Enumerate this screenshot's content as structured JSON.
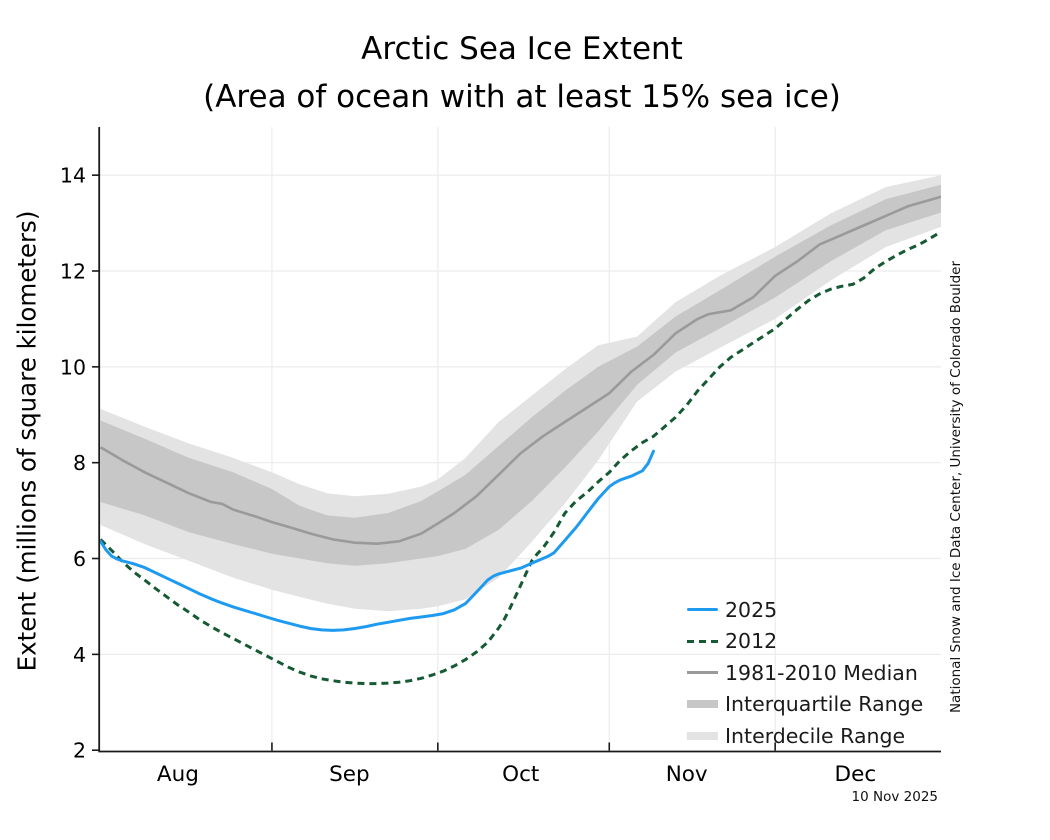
{
  "chart_data": {
    "type": "line",
    "title": "Arctic Sea Ice Extent",
    "subtitle": "(Area of ocean with at least 15% sea ice)",
    "ylabel": "Extent (millions of square kilometers)",
    "date_label": "10 Nov 2025",
    "credit": "National Snow and Ice Data Center, University of Colorado Boulder",
    "ylim": [
      2,
      15
    ],
    "y_ticks": [
      2,
      4,
      6,
      8,
      10,
      12,
      14
    ],
    "grid": true,
    "x_start_date": "Aug 1",
    "x_end_date": "Dec 31",
    "month_labels": [
      {
        "label": "Aug",
        "mid_day": 14
      },
      {
        "label": "Sep",
        "mid_day": 45
      },
      {
        "label": "Oct",
        "mid_day": 76
      },
      {
        "label": "Nov",
        "mid_day": 106
      },
      {
        "label": "Dec",
        "mid_day": 136.5
      }
    ],
    "month_tick_days": [
      31,
      61,
      92,
      122
    ],
    "legend": [
      {
        "label": "2025",
        "swatch": "line-solid",
        "color": "#1e9bf0"
      },
      {
        "label": "2012",
        "swatch": "line-dashed",
        "color": "#155a33"
      },
      {
        "label": "1981-2010 Median",
        "swatch": "line-solid",
        "color": "#9a9a9a"
      },
      {
        "label": "Interquartile Range",
        "swatch": "band",
        "color": "#c7c7c7"
      },
      {
        "label": "Interdecile Range",
        "swatch": "band",
        "color": "#e3e3e3"
      }
    ],
    "colors": {
      "line_2025": "#1e9bf0",
      "line_2012": "#155a33",
      "line_median": "#9a9a9a",
      "band_interquartile": "#c7c7c7",
      "band_interdecile": "#e3e3e3",
      "gridline": "#ececec",
      "axis": "#1a1a1a",
      "background": "#ffffff"
    },
    "series": [
      {
        "name": "2025",
        "units": "days_from_Aug1_and_Mkm2",
        "points": [
          [
            0,
            6.36
          ],
          [
            1,
            6.18
          ],
          [
            2,
            6.05
          ],
          [
            3,
            5.99
          ],
          [
            4,
            5.95
          ],
          [
            6,
            5.89
          ],
          [
            8,
            5.81
          ],
          [
            10,
            5.7
          ],
          [
            12,
            5.59
          ],
          [
            14,
            5.48
          ],
          [
            16,
            5.37
          ],
          [
            18,
            5.26
          ],
          [
            20,
            5.16
          ],
          [
            22,
            5.07
          ],
          [
            24,
            4.99
          ],
          [
            26,
            4.92
          ],
          [
            28,
            4.85
          ],
          [
            30,
            4.78
          ],
          [
            32,
            4.71
          ],
          [
            34,
            4.65
          ],
          [
            36,
            4.59
          ],
          [
            38,
            4.54
          ],
          [
            40,
            4.51
          ],
          [
            42,
            4.5
          ],
          [
            44,
            4.51
          ],
          [
            46,
            4.54
          ],
          [
            48,
            4.58
          ],
          [
            50,
            4.63
          ],
          [
            52,
            4.67
          ],
          [
            54,
            4.71
          ],
          [
            56,
            4.75
          ],
          [
            58,
            4.78
          ],
          [
            60,
            4.81
          ],
          [
            62,
            4.85
          ],
          [
            64,
            4.93
          ],
          [
            66,
            5.06
          ],
          [
            68,
            5.3
          ],
          [
            70,
            5.55
          ],
          [
            71,
            5.63
          ],
          [
            72,
            5.68
          ],
          [
            74,
            5.74
          ],
          [
            76,
            5.8
          ],
          [
            78,
            5.9
          ],
          [
            80,
            6.0
          ],
          [
            81,
            6.05
          ],
          [
            82,
            6.12
          ],
          [
            84,
            6.38
          ],
          [
            86,
            6.65
          ],
          [
            88,
            6.95
          ],
          [
            90,
            7.25
          ],
          [
            92,
            7.5
          ],
          [
            93,
            7.58
          ],
          [
            94,
            7.64
          ],
          [
            96,
            7.72
          ],
          [
            98,
            7.83
          ],
          [
            99,
            7.98
          ],
          [
            100,
            8.24
          ]
        ]
      },
      {
        "name": "2012",
        "units": "days_from_Aug1_and_Mkm2",
        "points": [
          [
            0,
            6.4
          ],
          [
            2,
            6.17
          ],
          [
            4,
            5.93
          ],
          [
            6,
            5.72
          ],
          [
            8,
            5.55
          ],
          [
            10,
            5.37
          ],
          [
            12,
            5.2
          ],
          [
            14,
            5.03
          ],
          [
            16,
            4.88
          ],
          [
            18,
            4.72
          ],
          [
            20,
            4.58
          ],
          [
            22,
            4.45
          ],
          [
            24,
            4.33
          ],
          [
            26,
            4.21
          ],
          [
            28,
            4.09
          ],
          [
            30,
            3.97
          ],
          [
            32,
            3.85
          ],
          [
            34,
            3.73
          ],
          [
            36,
            3.63
          ],
          [
            38,
            3.55
          ],
          [
            40,
            3.49
          ],
          [
            42,
            3.45
          ],
          [
            44,
            3.42
          ],
          [
            46,
            3.4
          ],
          [
            48,
            3.39
          ],
          [
            50,
            3.39
          ],
          [
            52,
            3.4
          ],
          [
            54,
            3.42
          ],
          [
            56,
            3.45
          ],
          [
            58,
            3.5
          ],
          [
            60,
            3.57
          ],
          [
            62,
            3.65
          ],
          [
            64,
            3.76
          ],
          [
            66,
            3.89
          ],
          [
            68,
            4.05
          ],
          [
            70,
            4.25
          ],
          [
            72,
            4.55
          ],
          [
            73,
            4.73
          ],
          [
            74,
            4.95
          ],
          [
            75,
            5.2
          ],
          [
            76,
            5.45
          ],
          [
            77,
            5.7
          ],
          [
            78,
            5.95
          ],
          [
            79,
            6.1
          ],
          [
            80,
            6.22
          ],
          [
            81,
            6.38
          ],
          [
            82,
            6.55
          ],
          [
            83,
            6.75
          ],
          [
            84,
            6.95
          ],
          [
            86,
            7.2
          ],
          [
            88,
            7.38
          ],
          [
            90,
            7.6
          ],
          [
            92,
            7.8
          ],
          [
            94,
            8.05
          ],
          [
            96,
            8.25
          ],
          [
            98,
            8.42
          ],
          [
            100,
            8.55
          ],
          [
            102,
            8.75
          ],
          [
            104,
            8.95
          ],
          [
            106,
            9.2
          ],
          [
            108,
            9.5
          ],
          [
            110,
            9.75
          ],
          [
            112,
            10.0
          ],
          [
            114,
            10.2
          ],
          [
            116,
            10.35
          ],
          [
            118,
            10.5
          ],
          [
            120,
            10.65
          ],
          [
            122,
            10.8
          ],
          [
            124,
            11.0
          ],
          [
            126,
            11.2
          ],
          [
            128,
            11.38
          ],
          [
            130,
            11.52
          ],
          [
            132,
            11.62
          ],
          [
            134,
            11.68
          ],
          [
            136,
            11.72
          ],
          [
            138,
            11.85
          ],
          [
            140,
            12.05
          ],
          [
            142,
            12.2
          ],
          [
            144,
            12.33
          ],
          [
            146,
            12.45
          ],
          [
            148,
            12.55
          ],
          [
            150,
            12.68
          ],
          [
            152,
            12.82
          ]
        ]
      },
      {
        "name": "1981-2010 Median",
        "units": "days_from_Aug1_and_Mkm2",
        "points": [
          [
            0,
            8.32
          ],
          [
            4,
            8.05
          ],
          [
            8,
            7.8
          ],
          [
            12,
            7.58
          ],
          [
            16,
            7.36
          ],
          [
            20,
            7.18
          ],
          [
            22,
            7.14
          ],
          [
            24,
            7.02
          ],
          [
            28,
            6.88
          ],
          [
            31,
            6.76
          ],
          [
            34,
            6.66
          ],
          [
            38,
            6.52
          ],
          [
            42,
            6.4
          ],
          [
            46,
            6.33
          ],
          [
            50,
            6.31
          ],
          [
            54,
            6.36
          ],
          [
            58,
            6.52
          ],
          [
            61,
            6.73
          ],
          [
            64,
            6.95
          ],
          [
            68,
            7.3
          ],
          [
            72,
            7.75
          ],
          [
            76,
            8.2
          ],
          [
            80,
            8.55
          ],
          [
            84,
            8.85
          ],
          [
            88,
            9.15
          ],
          [
            92,
            9.45
          ],
          [
            96,
            9.9
          ],
          [
            100,
            10.25
          ],
          [
            104,
            10.7
          ],
          [
            108,
            11.0
          ],
          [
            110,
            11.1
          ],
          [
            114,
            11.18
          ],
          [
            118,
            11.45
          ],
          [
            122,
            11.9
          ],
          [
            126,
            12.2
          ],
          [
            130,
            12.55
          ],
          [
            134,
            12.75
          ],
          [
            138,
            12.95
          ],
          [
            142,
            13.15
          ],
          [
            146,
            13.35
          ],
          [
            149,
            13.45
          ],
          [
            152,
            13.55
          ]
        ]
      }
    ],
    "bands": [
      {
        "name": "Interdecile Range",
        "points": [
          [
            0,
            6.7,
            9.12
          ],
          [
            8,
            6.3,
            8.75
          ],
          [
            16,
            5.95,
            8.4
          ],
          [
            24,
            5.6,
            8.1
          ],
          [
            31,
            5.35,
            7.8
          ],
          [
            36,
            5.2,
            7.55
          ],
          [
            41,
            5.06,
            7.36
          ],
          [
            46,
            4.95,
            7.3
          ],
          [
            52,
            4.9,
            7.35
          ],
          [
            58,
            4.95,
            7.5
          ],
          [
            61,
            5.0,
            7.65
          ],
          [
            66,
            5.15,
            8.1
          ],
          [
            72,
            5.6,
            8.85
          ],
          [
            78,
            6.35,
            9.4
          ],
          [
            84,
            7.15,
            9.95
          ],
          [
            90,
            8.05,
            10.45
          ],
          [
            97,
            9.27,
            10.63
          ],
          [
            104,
            9.9,
            11.35
          ],
          [
            112,
            10.4,
            11.9
          ],
          [
            122,
            11.0,
            12.5
          ],
          [
            132,
            11.8,
            13.2
          ],
          [
            142,
            12.5,
            13.75
          ],
          [
            152,
            12.92,
            14.0
          ]
        ]
      },
      {
        "name": "Interquartile Range",
        "points": [
          [
            0,
            7.18,
            8.88
          ],
          [
            8,
            6.9,
            8.5
          ],
          [
            16,
            6.55,
            8.1
          ],
          [
            24,
            6.3,
            7.8
          ],
          [
            31,
            6.1,
            7.45
          ],
          [
            36,
            6.0,
            7.1
          ],
          [
            41,
            5.9,
            6.9
          ],
          [
            46,
            5.85,
            6.85
          ],
          [
            52,
            5.9,
            6.95
          ],
          [
            58,
            6.0,
            7.2
          ],
          [
            61,
            6.05,
            7.4
          ],
          [
            66,
            6.2,
            7.75
          ],
          [
            72,
            6.6,
            8.35
          ],
          [
            78,
            7.2,
            8.95
          ],
          [
            84,
            7.9,
            9.5
          ],
          [
            90,
            8.65,
            10.0
          ],
          [
            97,
            9.62,
            10.42
          ],
          [
            104,
            10.3,
            11.05
          ],
          [
            112,
            10.8,
            11.6
          ],
          [
            122,
            11.45,
            12.3
          ],
          [
            132,
            12.2,
            12.95
          ],
          [
            142,
            12.85,
            13.5
          ],
          [
            152,
            13.22,
            13.8
          ]
        ]
      }
    ]
  }
}
